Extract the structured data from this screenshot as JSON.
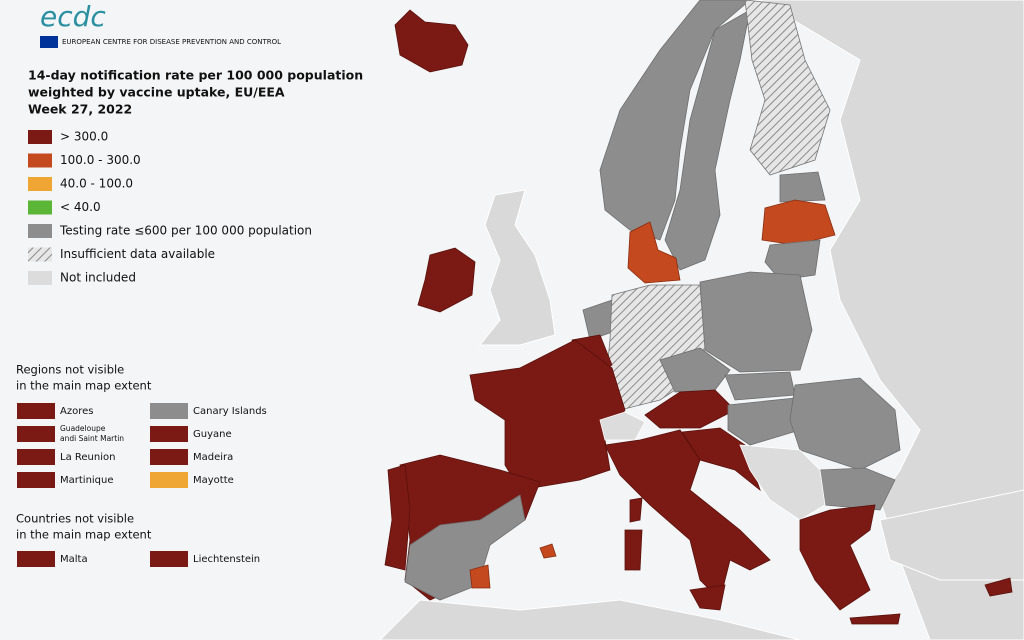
{
  "logo": {
    "text": "ecdc",
    "subtitle": "EUROPEAN CENTRE FOR DISEASE PREVENTION AND CONTROL"
  },
  "title": [
    "14-day notification rate per 100 000 population",
    "weighted by vaccine uptake, EU/EEA",
    "Week 27, 2022"
  ],
  "legend": [
    "> 300.0",
    "100.0 - 300.0",
    "40.0 - 100.0",
    "< 40.0",
    "Testing rate ≤600 per 100 000 population",
    "Insufficient data available",
    "Not included"
  ],
  "regions": {
    "heading": [
      "Regions not visible",
      "in the main map extent"
    ],
    "items": [
      [
        "Azores"
      ],
      [
        "Guadeloupe",
        "andi Saint Martin"
      ],
      [
        "La Reunion"
      ],
      [
        "Martinique"
      ],
      [
        "Canary Islands"
      ],
      [
        "Guyane"
      ],
      [
        "Madeira"
      ],
      [
        "Mayotte"
      ]
    ]
  },
  "countries": {
    "heading": [
      "Countries not visible",
      "in the main map extent"
    ],
    "items": [
      "Malta",
      "Liechtenstein"
    ]
  }
}
